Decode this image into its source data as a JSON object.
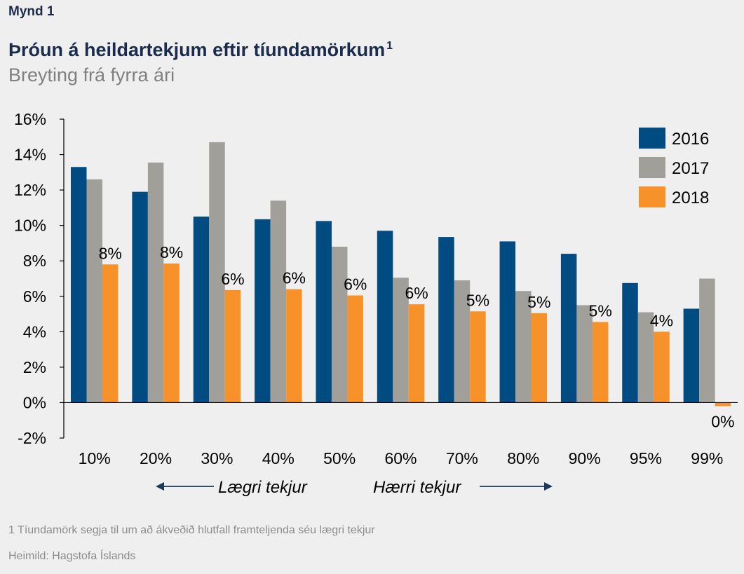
{
  "figure_label": "Mynd 1",
  "title": "Þróun á heildartekjum eftir tíundamörkum",
  "title_sup": "1",
  "subtitle": "Breyting frá fyrra ári",
  "footnote": "1 Tíundamörk segja til um að ákveðið hlutfall framteljenda séu lægri tekjur",
  "source": "Heimild: Hagstofa Íslands",
  "annotations": {
    "lower": "Lægri tekjur",
    "higher": "Hærri tekjur"
  },
  "colors": {
    "2016": "#004b82",
    "2017": "#a09f9a",
    "2018": "#f7922a",
    "axis": "#000000",
    "text": "#000000"
  },
  "chart_data": {
    "type": "bar",
    "title": "Þróun á heildartekjum eftir tíundamörkum",
    "subtitle": "Breyting frá fyrra ári",
    "xlabel": "",
    "ylabel": "",
    "categories": [
      "10%",
      "20%",
      "30%",
      "40%",
      "50%",
      "60%",
      "70%",
      "80%",
      "90%",
      "95%",
      "99%"
    ],
    "series": [
      {
        "name": "2016",
        "values": [
          13.3,
          11.9,
          10.5,
          10.35,
          10.25,
          9.7,
          9.35,
          9.1,
          8.4,
          6.75,
          5.3
        ]
      },
      {
        "name": "2017",
        "values": [
          12.6,
          13.55,
          14.7,
          11.4,
          8.8,
          7.05,
          6.9,
          6.3,
          5.5,
          5.1,
          7.0
        ]
      },
      {
        "name": "2018",
        "values": [
          7.8,
          7.85,
          6.35,
          6.4,
          6.05,
          5.55,
          5.15,
          5.05,
          4.55,
          4.0,
          -0.2
        ]
      }
    ],
    "data_labels_series": "2018",
    "data_labels": [
      "8%",
      "8%",
      "6%",
      "6%",
      "6%",
      "6%",
      "5%",
      "5%",
      "5%",
      "4%",
      "0%"
    ],
    "ylim": [
      -2,
      16
    ],
    "yticks": [
      -2,
      0,
      2,
      4,
      6,
      8,
      10,
      12,
      14,
      16
    ],
    "ytick_labels": [
      "-2%",
      "0%",
      "2%",
      "4%",
      "6%",
      "8%",
      "10%",
      "12%",
      "14%",
      "16%"
    ],
    "grid": false,
    "legend": "top-right"
  }
}
